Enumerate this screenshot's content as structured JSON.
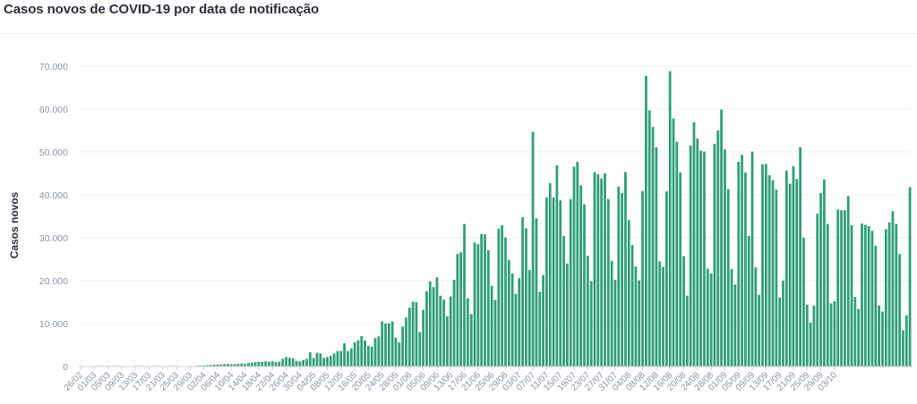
{
  "chart_data": {
    "type": "bar",
    "title": "Casos novos de COVID-19 por data de notificação",
    "ylabel": "Casos novos",
    "xlabel": "",
    "ylim": [
      0,
      70000
    ],
    "yticks": [
      "0",
      "10.000",
      "20.000",
      "30.000",
      "40.000",
      "50.000",
      "60.000",
      "70.000"
    ],
    "grid": true,
    "color": "#2e9e79",
    "x_tick_labels": [
      "26/02",
      "01/03",
      "05/03",
      "09/03",
      "13/03",
      "17/03",
      "21/03",
      "25/03",
      "29/03",
      "02/04",
      "06/04",
      "10/04",
      "14/04",
      "18/04",
      "22/04",
      "26/04",
      "30/04",
      "04/05",
      "08/05",
      "12/05",
      "16/05",
      "20/05",
      "24/05",
      "28/05",
      "01/06",
      "05/06",
      "09/06",
      "13/06",
      "17/06",
      "21/06",
      "25/06",
      "29/06",
      "03/07",
      "07/07",
      "11/07",
      "15/07",
      "19/07",
      "23/07",
      "27/07",
      "31/07",
      "04/08",
      "08/08",
      "12/08",
      "16/08",
      "20/08",
      "24/08",
      "28/08",
      "01/09",
      "05/09",
      "09/09",
      "13/09",
      "17/09",
      "21/09",
      "25/09",
      "29/09",
      "03/10"
    ],
    "start_date": "26/02",
    "values": [
      1,
      0,
      0,
      0,
      0,
      0,
      0,
      0,
      0,
      0,
      0,
      0,
      0,
      0,
      0,
      0,
      0,
      0,
      0,
      0,
      0,
      0,
      0,
      0,
      0,
      0,
      0,
      0,
      0,
      0,
      0,
      0,
      50,
      100,
      150,
      200,
      250,
      300,
      350,
      400,
      450,
      500,
      550,
      600,
      500,
      550,
      600,
      700,
      600,
      800,
      900,
      1000,
      1100,
      1100,
      1200,
      1100,
      1200,
      1000,
      1100,
      1800,
      2200,
      2000,
      1900,
      1300,
      1200,
      1500,
      1800,
      3300,
      2000,
      3200,
      3000,
      2000,
      2200,
      2500,
      3000,
      3600,
      3600,
      5400,
      3600,
      4200,
      5600,
      6100,
      7100,
      6100,
      4800,
      4600,
      6600,
      7000,
      10500,
      10000,
      10100,
      10500,
      6700,
      5600,
      9300,
      11400,
      13700,
      15100,
      15000,
      8000,
      13200,
      17500,
      19800,
      18500,
      20800,
      16500,
      15600,
      11700,
      16300,
      20200,
      26200,
      26600,
      33200,
      15900,
      12200,
      28900,
      28500,
      30900,
      30800,
      27100,
      18800,
      15500,
      32100,
      32900,
      30100,
      24800,
      21700,
      16900,
      20600,
      34800,
      32200,
      22500,
      54700,
      34500,
      17400,
      21300,
      39400,
      42700,
      39400,
      46900,
      38700,
      30400,
      24000,
      39000,
      46600,
      47700,
      42200,
      37800,
      25800,
      19900,
      45300,
      44800,
      43800,
      45000,
      39000,
      24600,
      20200,
      41900,
      40400,
      45300,
      34100,
      28300,
      23300,
      20100,
      40900,
      67700,
      59700,
      55800,
      51100,
      24500,
      23200,
      40800,
      68800,
      57800,
      52400,
      45200,
      25700,
      16500,
      51500,
      56900,
      53100,
      50300,
      50100,
      22800,
      21700,
      51900,
      55000,
      59900,
      50600,
      41300,
      22700,
      19100,
      47700,
      49300,
      45200,
      30400,
      50100,
      23100,
      16700,
      47100,
      47200,
      44600,
      43400,
      41200,
      16100,
      20000,
      45700,
      42600,
      46700,
      43700,
      51100,
      30000,
      14400,
      10200,
      14200,
      35600,
      40400,
      43600,
      33200,
      14700,
      15200,
      36600,
      36400,
      36400,
      39700,
      32900,
      16200,
      13400,
      33300,
      33000,
      32700,
      31600,
      28100,
      14200,
      12800,
      32000,
      33600,
      36200,
      33200,
      26200,
      8400,
      11900,
      41800
    ]
  }
}
